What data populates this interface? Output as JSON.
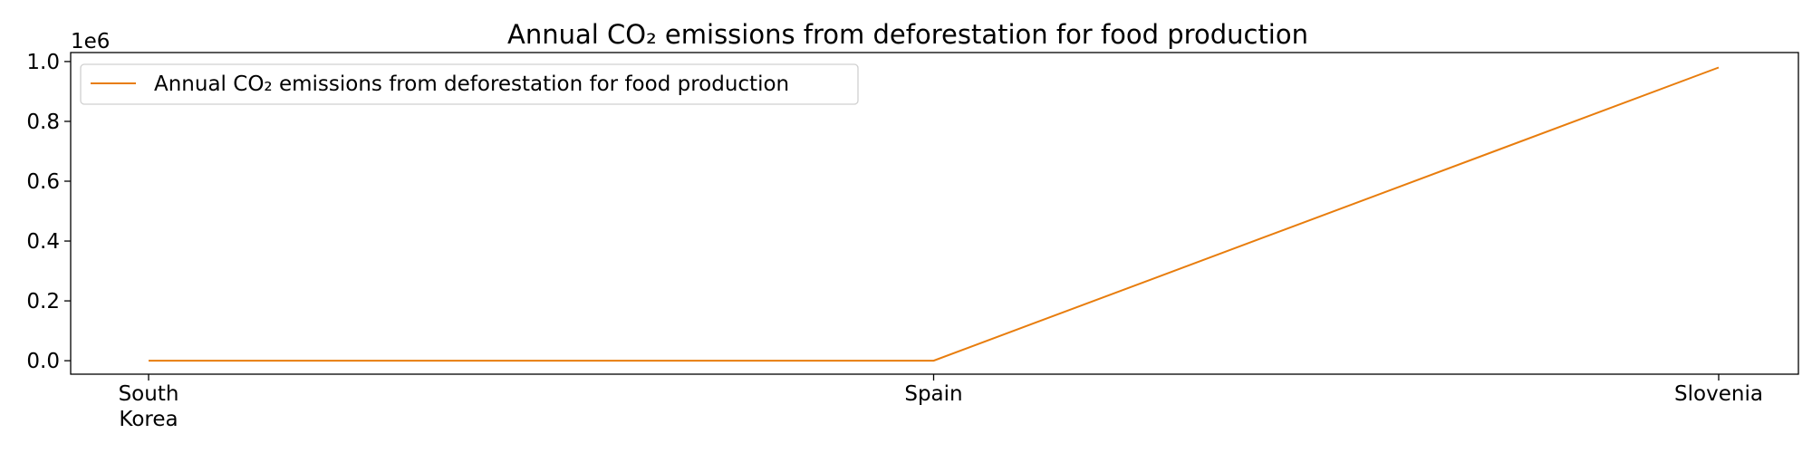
{
  "chart_data": {
    "type": "line",
    "title": "Annual CO₂ emissions from deforestation for food production",
    "xlabel": "",
    "ylabel": "",
    "categories": [
      "South Korea",
      "Spain",
      "Slovenia"
    ],
    "category_labels": [
      [
        "South",
        "Korea"
      ],
      [
        "Spain"
      ],
      [
        "Slovenia"
      ]
    ],
    "series": [
      {
        "name": "Annual CO₂ emissions from deforestation for food production",
        "values": [
          0,
          0,
          980000
        ],
        "color": "#e87d0d"
      }
    ],
    "ylim": [
      -45000,
      1030000
    ],
    "yticks": [
      0,
      0.2,
      0.4,
      0.6,
      0.8,
      1.0
    ],
    "ytick_labels": [
      "0.0",
      "0.2",
      "0.4",
      "0.6",
      "0.8",
      "1.0"
    ],
    "y_scale_factor": 1000000,
    "y_offset_label": "1e6",
    "grid": false,
    "legend_position": "top-left"
  }
}
